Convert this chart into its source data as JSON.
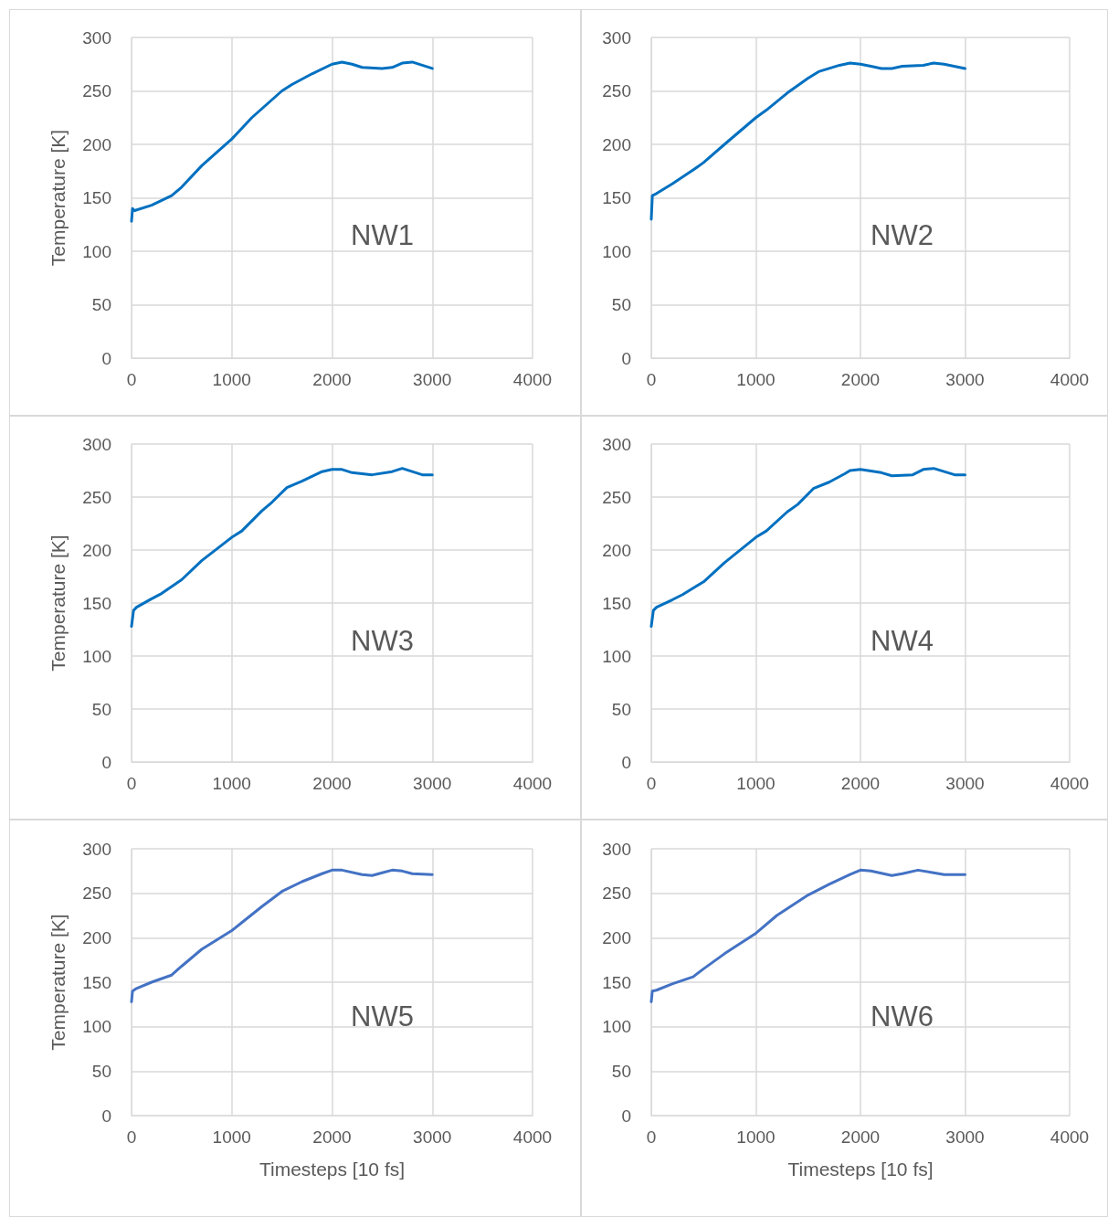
{
  "chart_data": [
    {
      "type": "line",
      "ylabel": "Temperature [K]",
      "annotations": [
        "NW1"
      ],
      "xlim": [
        0,
        4000
      ],
      "xticks": [
        0,
        1000,
        2000,
        3000,
        4000
      ],
      "ylim": [
        0,
        300
      ],
      "yticks": [
        0,
        50,
        100,
        150,
        200,
        250,
        300
      ],
      "grid": true,
      "x": [
        0,
        10,
        30,
        200,
        400,
        500,
        700,
        1000,
        1200,
        1500,
        1600,
        1800,
        2000,
        2100,
        2200,
        2300,
        2500,
        2600,
        2700,
        2800,
        2900,
        3000
      ],
      "series": [
        {
          "color": "#0070c0",
          "values": [
            128,
            140,
            138,
            143,
            152,
            160,
            180,
            205,
            225,
            250,
            256,
            266,
            275,
            277,
            275,
            272,
            271,
            272,
            276,
            277,
            274,
            271
          ]
        }
      ]
    },
    {
      "type": "line",
      "annotations": [
        "NW2"
      ],
      "xlim": [
        0,
        4000
      ],
      "xticks": [
        0,
        1000,
        2000,
        3000,
        4000
      ],
      "ylim": [
        0,
        300
      ],
      "yticks": [
        0,
        50,
        100,
        150,
        200,
        250,
        300
      ],
      "grid": true,
      "x": [
        0,
        10,
        50,
        200,
        400,
        500,
        700,
        1000,
        1100,
        1300,
        1500,
        1600,
        1800,
        1900,
        2000,
        2100,
        2200,
        2300,
        2400,
        2600,
        2700,
        2800,
        3000
      ],
      "series": [
        {
          "color": "#0070c0",
          "values": [
            130,
            152,
            154,
            163,
            176,
            183,
            200,
            225,
            232,
            248,
            262,
            268,
            274,
            276,
            275,
            273,
            271,
            271,
            273,
            274,
            276,
            275,
            271
          ]
        }
      ]
    },
    {
      "type": "line",
      "ylabel": "Temperature [K]",
      "annotations": [
        "NW3"
      ],
      "xlim": [
        0,
        4000
      ],
      "xticks": [
        0,
        1000,
        2000,
        3000,
        4000
      ],
      "ylim": [
        0,
        300
      ],
      "yticks": [
        0,
        50,
        100,
        150,
        200,
        250,
        300
      ],
      "grid": true,
      "x": [
        0,
        20,
        50,
        200,
        300,
        500,
        700,
        1000,
        1100,
        1300,
        1400,
        1550,
        1700,
        1900,
        2000,
        2100,
        2200,
        2400,
        2600,
        2700,
        2800,
        2900,
        3000
      ],
      "series": [
        {
          "color": "#0070c0",
          "values": [
            128,
            143,
            146,
            154,
            159,
            172,
            190,
            212,
            218,
            237,
            245,
            259,
            265,
            274,
            276,
            276,
            273,
            271,
            274,
            277,
            274,
            271,
            271
          ]
        }
      ]
    },
    {
      "type": "line",
      "annotations": [
        "NW4"
      ],
      "xlim": [
        0,
        4000
      ],
      "xticks": [
        0,
        1000,
        2000,
        3000,
        4000
      ],
      "ylim": [
        0,
        300
      ],
      "yticks": [
        0,
        50,
        100,
        150,
        200,
        250,
        300
      ],
      "grid": true,
      "x": [
        0,
        20,
        50,
        200,
        300,
        500,
        700,
        1000,
        1100,
        1300,
        1400,
        1550,
        1700,
        1850,
        1900,
        2000,
        2200,
        2300,
        2500,
        2600,
        2700,
        2800,
        2900,
        3000
      ],
      "series": [
        {
          "color": "#0070c0",
          "values": [
            128,
            143,
            146,
            153,
            158,
            170,
            188,
            212,
            218,
            236,
            243,
            258,
            264,
            272,
            275,
            276,
            273,
            270,
            271,
            276,
            277,
            274,
            271,
            271
          ]
        }
      ]
    },
    {
      "type": "line",
      "xlabel": "Timesteps [10 fs]",
      "ylabel": "Temperature [K]",
      "annotations": [
        "NW5"
      ],
      "xlim": [
        0,
        4000
      ],
      "xticks": [
        0,
        1000,
        2000,
        3000,
        4000
      ],
      "ylim": [
        0,
        300
      ],
      "yticks": [
        0,
        50,
        100,
        150,
        200,
        250,
        300
      ],
      "grid": true,
      "x": [
        0,
        10,
        50,
        200,
        400,
        500,
        700,
        1000,
        1100,
        1300,
        1500,
        1700,
        1900,
        2000,
        2100,
        2300,
        2400,
        2500,
        2600,
        2700,
        2800,
        3000
      ],
      "series": [
        {
          "color": "#4472c4",
          "values": [
            128,
            140,
            143,
            150,
            158,
            168,
            187,
            208,
            217,
            235,
            252,
            263,
            272,
            276,
            276,
            271,
            270,
            273,
            276,
            275,
            272,
            271
          ]
        }
      ]
    },
    {
      "type": "line",
      "xlabel": "Timesteps [10 fs]",
      "annotations": [
        "NW6"
      ],
      "xlim": [
        0,
        4000
      ],
      "xticks": [
        0,
        1000,
        2000,
        3000,
        4000
      ],
      "ylim": [
        0,
        300
      ],
      "yticks": [
        0,
        50,
        100,
        150,
        200,
        250,
        300
      ],
      "grid": true,
      "x": [
        0,
        10,
        50,
        200,
        400,
        500,
        700,
        1000,
        1200,
        1500,
        1700,
        1900,
        2000,
        2100,
        2300,
        2400,
        2550,
        2700,
        2800,
        3000
      ],
      "series": [
        {
          "color": "#4472c4",
          "values": [
            128,
            140,
            141,
            148,
            156,
            165,
            182,
            205,
            225,
            248,
            260,
            271,
            276,
            275,
            270,
            272,
            276,
            273,
            271,
            271
          ]
        }
      ]
    }
  ]
}
